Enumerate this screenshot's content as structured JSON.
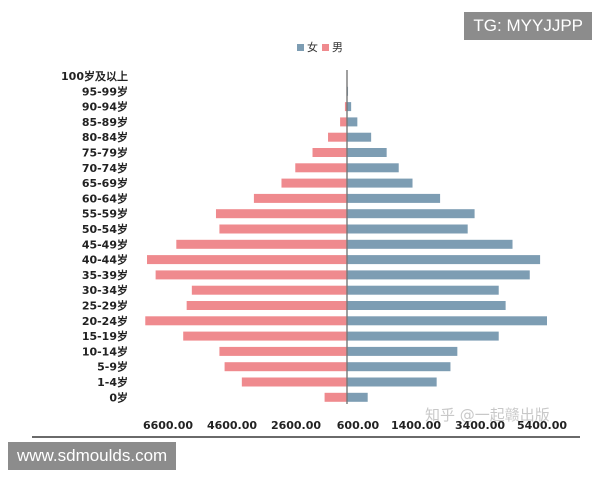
{
  "watermarks": {
    "tg": "TG: MYYJJPP",
    "site": "www.sdmoulds.com",
    "zhihu": "知乎 @一起赣出版"
  },
  "chart_data": {
    "type": "bar",
    "orientation": "horizontal",
    "layout": "population-pyramid",
    "legend": {
      "placement": "top-center",
      "entries": [
        "女",
        "男"
      ]
    },
    "colors": {
      "女": "#7d9db3",
      "男": "#ef8a8e",
      "axis": "#777777"
    },
    "categories": [
      "0岁",
      "1-4岁",
      "5-9岁",
      "10-14岁",
      "15-19岁",
      "20-24岁",
      "25-29岁",
      "30-34岁",
      "35-39岁",
      "40-44岁",
      "45-49岁",
      "50-54岁",
      "55-59岁",
      "60-64岁",
      "65-69岁",
      "70-74岁",
      "75-79岁",
      "80-84岁",
      "85-89岁",
      "90-94岁",
      "95-99岁",
      "100岁及以上"
    ],
    "series": [
      {
        "name": "女",
        "side": "right",
        "values": [
          600,
          2600,
          3000,
          3200,
          4400,
          5800,
          4600,
          4400,
          5300,
          5600,
          4800,
          3500,
          3700,
          2700,
          1900,
          1500,
          1150,
          700,
          300,
          120,
          30,
          10
        ]
      },
      {
        "name": "男",
        "side": "left",
        "values": [
          650,
          3050,
          3550,
          3700,
          4750,
          5850,
          4650,
          4500,
          5550,
          5800,
          4950,
          3700,
          3800,
          2700,
          1900,
          1500,
          1000,
          550,
          200,
          60,
          15,
          5
        ]
      }
    ],
    "x_ticks": [
      "6600.00",
      "4600.00",
      "2600.00",
      "600.00",
      "1400.00",
      "3400.00",
      "5400.00"
    ],
    "xlim": [
      -6600,
      6600
    ],
    "grid": false
  }
}
